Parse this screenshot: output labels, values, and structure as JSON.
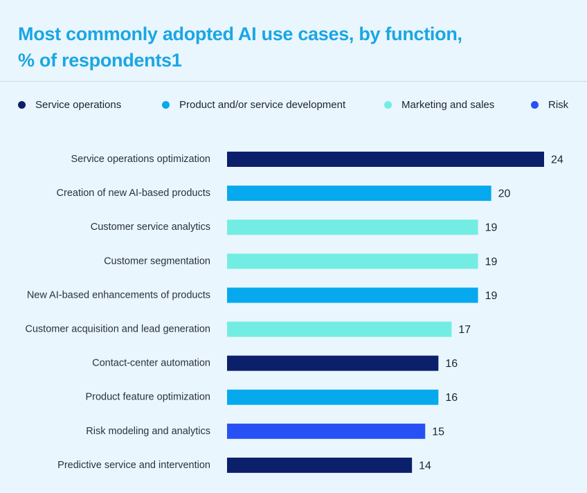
{
  "title_line1": "Most commonly adopted AI use cases, by function,",
  "title_line2": "% of respondents1",
  "legend": [
    {
      "label": "Service operations",
      "color": "#0b1f6b"
    },
    {
      "label": "Product and/or service development",
      "color": "#06a9ee"
    },
    {
      "label": "Marketing and sales",
      "color": "#73ede3"
    },
    {
      "label": "Risk",
      "color": "#2750f5"
    }
  ],
  "chart_data": {
    "type": "bar",
    "orientation": "horizontal",
    "title": "Most commonly adopted AI use cases, by function, % of respondents1",
    "xlabel": "",
    "ylabel": "",
    "grid": false,
    "xlim": [
      0,
      24
    ],
    "categories": [
      "Service operations optimization",
      "Creation of new AI-based products",
      "Customer service analytics",
      "Customer segmentation",
      "New AI-based enhancements of products",
      "Customer acquisition and lead generation",
      "Contact-center automation",
      "Product feature optimization",
      "Risk modeling and analytics",
      "Predictive service and intervention"
    ],
    "values": [
      24,
      20,
      19,
      19,
      19,
      17,
      16,
      16,
      15,
      14
    ],
    "groups": [
      "Service operations",
      "Product and/or service development",
      "Marketing and sales",
      "Marketing and sales",
      "Product and/or service development",
      "Marketing and sales",
      "Service operations",
      "Product and/or service development",
      "Risk",
      "Service operations"
    ]
  }
}
